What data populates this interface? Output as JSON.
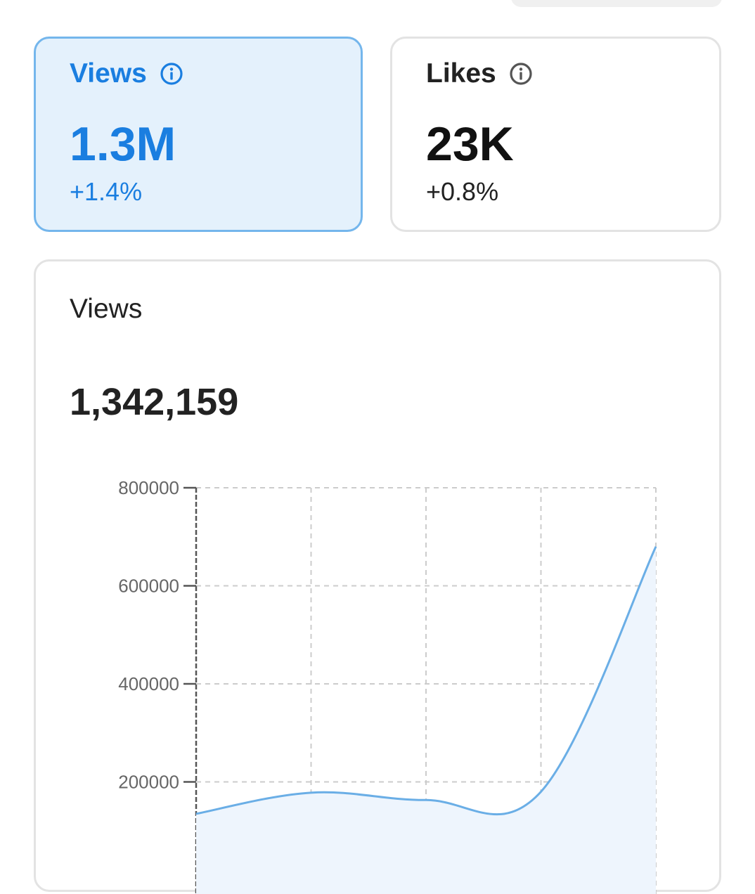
{
  "stats": [
    {
      "title": "Views",
      "value": "1.3M",
      "change": "+1.4%",
      "icon": "info-icon",
      "selected": true
    },
    {
      "title": "Likes",
      "value": "23K",
      "change": "+0.8%",
      "icon": "info-icon",
      "selected": false
    }
  ],
  "chart": {
    "title": "Views",
    "total": "1,342,159"
  },
  "colors": {
    "accent": "#1a7ee0",
    "line": "#6aaee6",
    "area": "#eef5fd",
    "active_card_bg": "#e4f1fc"
  },
  "chart_data": {
    "type": "area",
    "title": "",
    "xlabel": "",
    "ylabel": "",
    "x": [
      0,
      1,
      2,
      3,
      4
    ],
    "values": [
      135000,
      178000,
      163000,
      180000,
      680000
    ],
    "ylim": [
      0,
      800000
    ],
    "yticks": [
      "800000",
      "600000",
      "400000",
      "200000"
    ],
    "grid": true
  }
}
